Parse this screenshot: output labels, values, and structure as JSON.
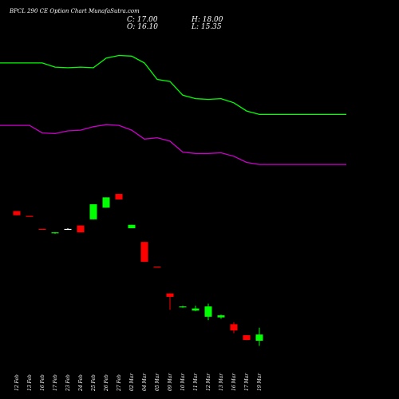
{
  "header": {
    "title": "BPCL 290 CE Option Chart MunafaSutra.com",
    "close": "C: 17.00",
    "open": "O: 16.10",
    "high": "H: 18.00",
    "low": "L: 15.35"
  },
  "chart_data": {
    "type": "candlestick",
    "background": "#000000",
    "up_color": "#00ff00",
    "down_color": "#ff0000",
    "neutral_color": "#ffffff",
    "upper_band_color": "#00ff00",
    "lower_band_color": "#cc00cc",
    "categories": [
      "12 Feb",
      "13 Feb",
      "16 Feb",
      "17 Feb",
      "23 Feb",
      "24 Feb",
      "25 Feb",
      "26 Feb",
      "27 Feb",
      "02 Mar",
      "04 Mar",
      "05 Mar",
      "09 Mar",
      "10 Mar",
      "11 Mar",
      "12 Mar",
      "13 Mar",
      "16 Mar",
      "17 Mar",
      "19 Mar"
    ],
    "candles": [
      {
        "o": 35.0,
        "h": 35.0,
        "l": 34.4,
        "c": 34.4
      },
      {
        "o": 34.3,
        "h": 34.3,
        "l": 34.2,
        "c": 34.2
      },
      {
        "o": 32.4,
        "h": 32.4,
        "l": 32.3,
        "c": 32.3
      },
      {
        "o": 31.8,
        "h": 31.9,
        "l": 31.7,
        "c": 31.9
      },
      {
        "o": 32.4,
        "h": 32.5,
        "l": 32.3,
        "c": 32.4
      },
      {
        "o": 32.9,
        "h": 32.9,
        "l": 31.9,
        "c": 31.9
      },
      {
        "o": 33.8,
        "h": 36.0,
        "l": 33.8,
        "c": 36.0
      },
      {
        "o": 35.5,
        "h": 37.0,
        "l": 35.5,
        "c": 37.0
      },
      {
        "o": 37.5,
        "h": 37.5,
        "l": 36.7,
        "c": 36.7
      },
      {
        "o": 32.5,
        "h": 33.0,
        "l": 32.5,
        "c": 33.0
      },
      {
        "o": 30.5,
        "h": 30.5,
        "l": 27.6,
        "c": 27.6
      },
      {
        "o": 26.9,
        "h": 26.9,
        "l": 26.8,
        "c": 26.8
      },
      {
        "o": 23.0,
        "h": 23.0,
        "l": 20.6,
        "c": 22.5
      },
      {
        "o": 21.0,
        "h": 21.2,
        "l": 20.9,
        "c": 21.1
      },
      {
        "o": 20.5,
        "h": 21.2,
        "l": 20.4,
        "c": 20.8
      },
      {
        "o": 19.6,
        "h": 21.5,
        "l": 19.1,
        "c": 21.1
      },
      {
        "o": 19.5,
        "h": 19.9,
        "l": 19.3,
        "c": 19.8
      },
      {
        "o": 18.5,
        "h": 18.8,
        "l": 17.2,
        "c": 17.6
      },
      {
        "o": 16.9,
        "h": 16.9,
        "l": 16.2,
        "c": 16.2
      },
      {
        "o": 16.1,
        "h": 18.0,
        "l": 15.35,
        "c": 17.0
      }
    ],
    "upper_band": [
      56.6,
      56.6,
      56.6,
      56.0,
      55.9,
      56.0,
      55.9,
      57.3,
      57.7,
      57.6,
      56.6,
      54.2,
      53.9,
      51.9,
      51.4,
      51.3,
      51.4,
      50.8,
      49.6,
      49.1
    ],
    "lower_band": [
      47.5,
      47.5,
      46.4,
      46.3,
      46.7,
      46.8,
      47.3,
      47.6,
      47.5,
      46.8,
      45.5,
      45.7,
      45.2,
      43.6,
      43.4,
      43.4,
      43.5,
      43.0,
      42.1,
      41.8
    ],
    "ylim": [
      14.0,
      58.8
    ]
  }
}
